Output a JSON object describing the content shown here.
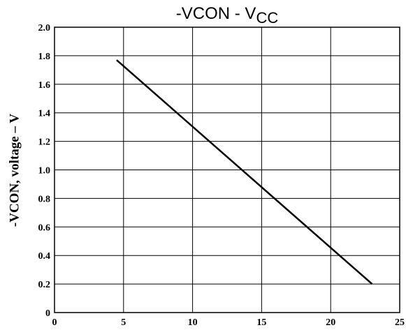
{
  "chart_data": {
    "type": "line",
    "title": {
      "text": "-VCON - V",
      "subscript": "CC"
    },
    "ylabel": "-VCON, voltage – V",
    "x": [
      4.5,
      23
    ],
    "series": [
      {
        "color": "#000000",
        "values": [
          1.77,
          0.2
        ]
      }
    ],
    "xlim": [
      0,
      25
    ],
    "xticks": [
      0,
      5,
      10,
      15,
      20,
      25
    ],
    "ylim": [
      0,
      2
    ],
    "yticks": [
      0,
      0.2,
      0.4,
      0.6,
      0.8,
      {
        "value": 1,
        "label": "1.0"
      },
      1.2,
      1.4,
      1.6,
      1.8,
      {
        "value": 2,
        "label": "2.0"
      }
    ],
    "grid": true
  }
}
